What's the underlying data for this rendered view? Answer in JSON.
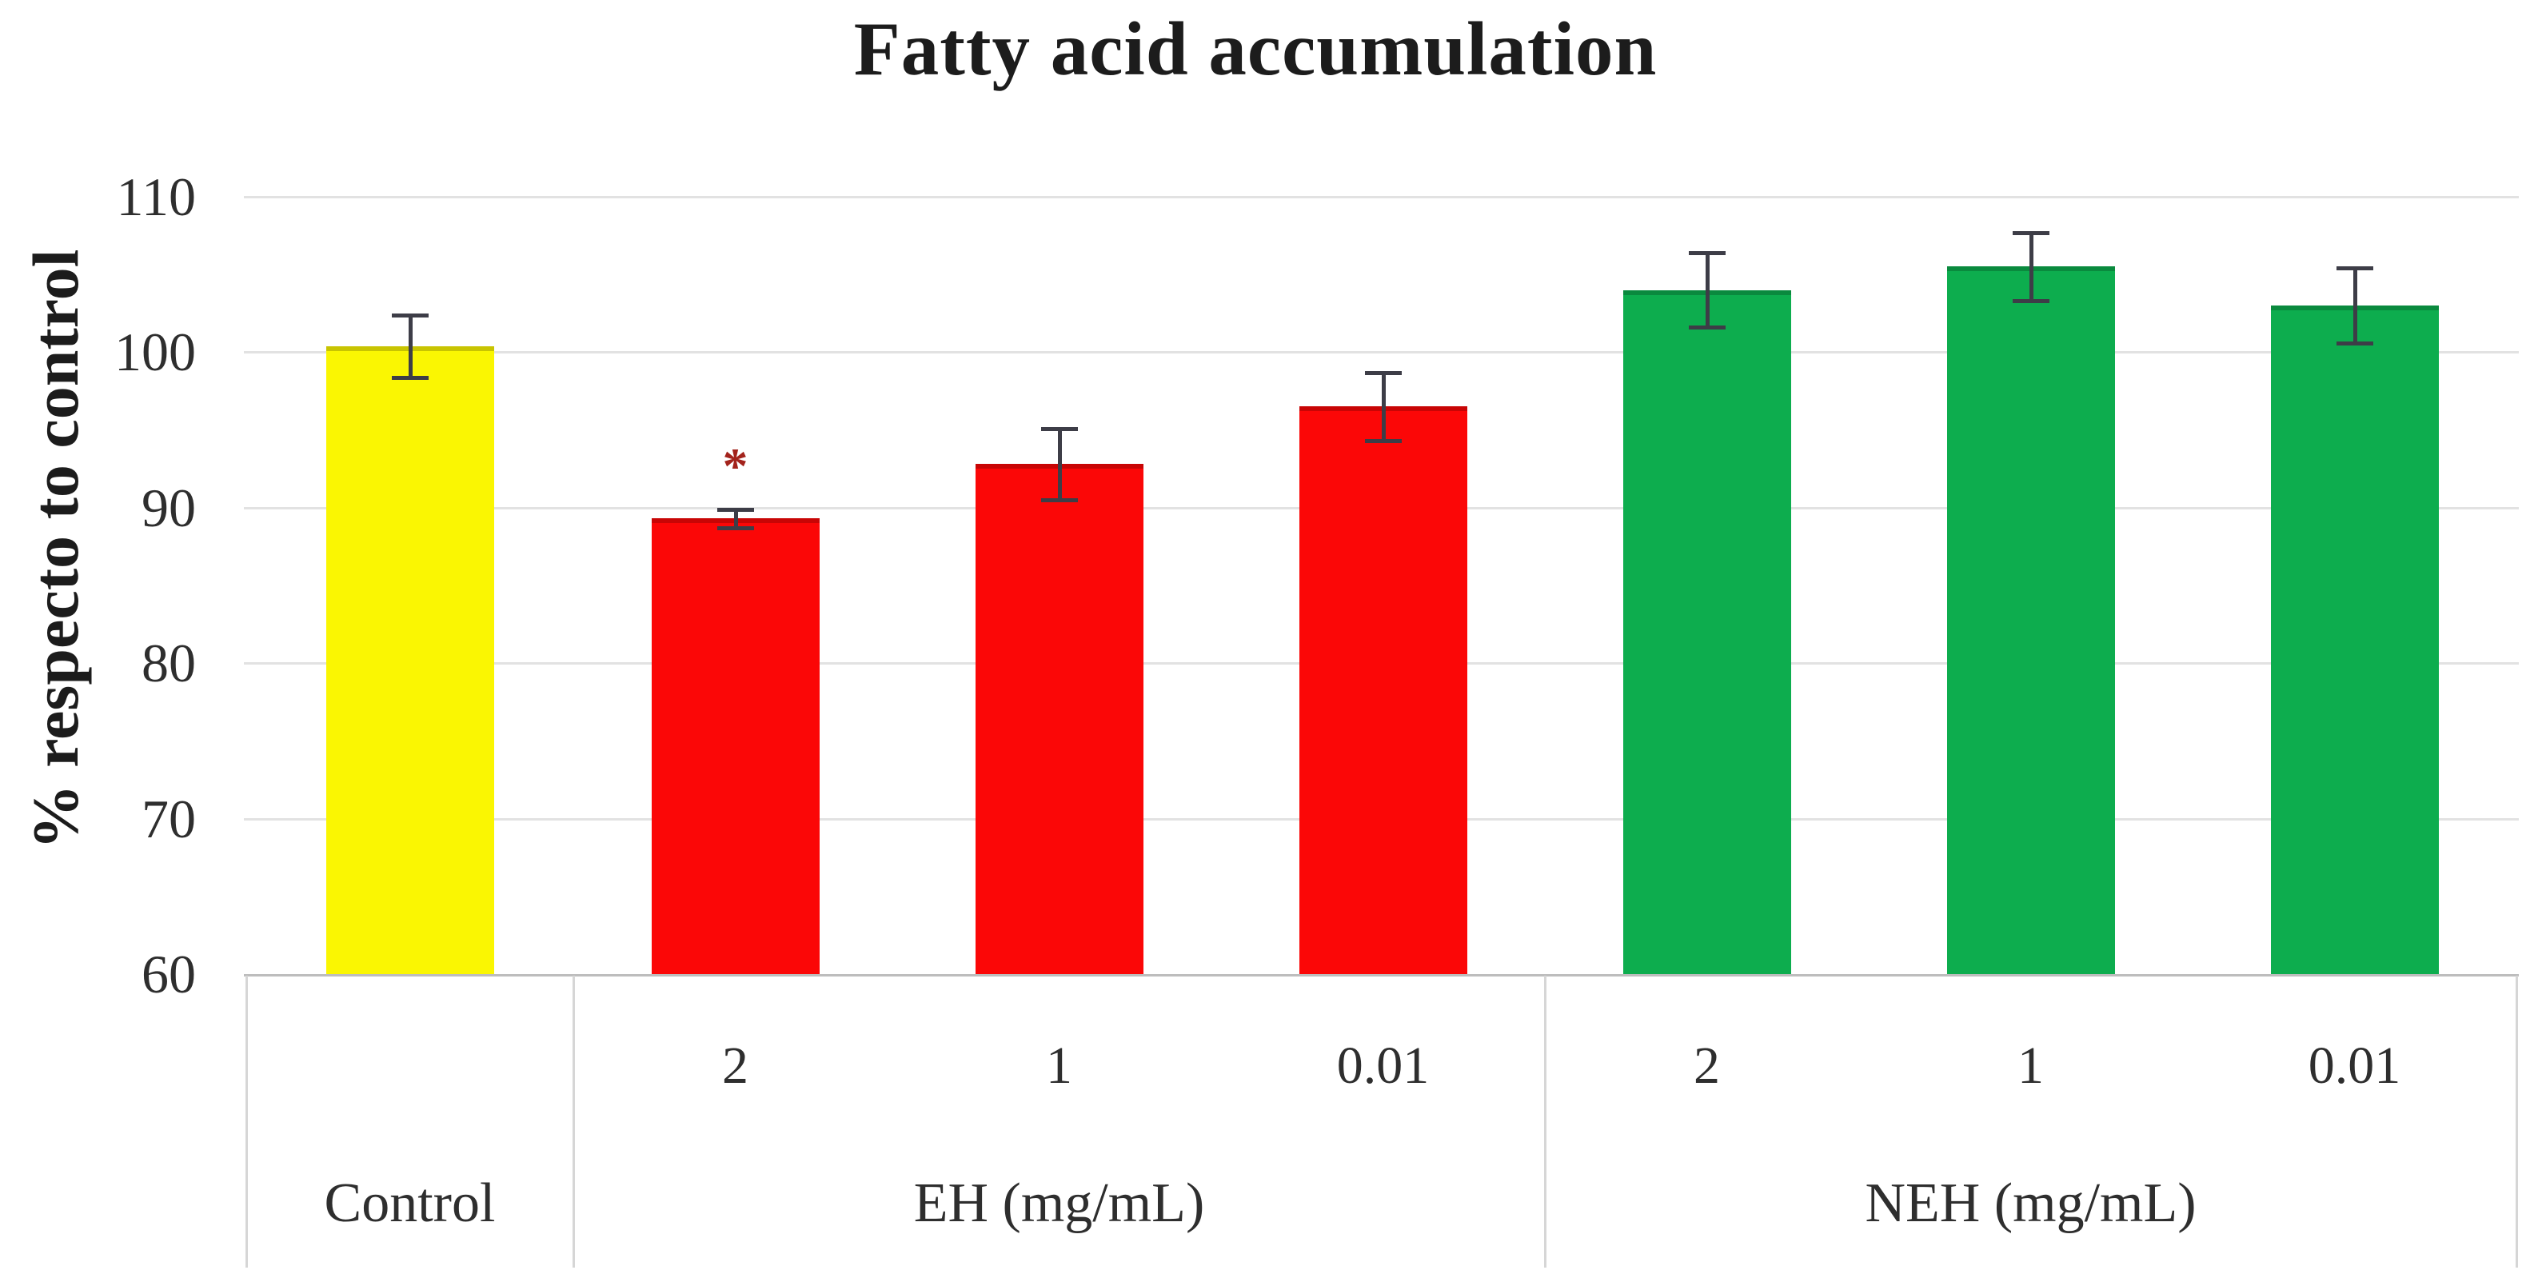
{
  "chart_data": {
    "type": "bar",
    "title": "Fatty acid accumulation",
    "ylabel": "% respecto to control",
    "xlabel": "",
    "ylim": [
      60,
      110
    ],
    "yticks": [
      110,
      100,
      90,
      80,
      70,
      60
    ],
    "grid": true,
    "legend": false,
    "error_bar_color": "#3D3D47",
    "annotation_color": "#A3231C",
    "groups": [
      {
        "id": "control",
        "label": "Control",
        "color": "#FAF602",
        "bars": [
          {
            "tick": "",
            "value": 100.4,
            "error": 2.0
          }
        ]
      },
      {
        "id": "eh",
        "label": "EH (mg/mL)",
        "color": "#FB0707",
        "bars": [
          {
            "tick": "2",
            "value": 89.3,
            "error": 0.6,
            "annotation": "*"
          },
          {
            "tick": "1",
            "value": 92.8,
            "error": 2.3
          },
          {
            "tick": "0.01",
            "value": 96.5,
            "error": 2.2
          }
        ]
      },
      {
        "id": "neh",
        "label": "NEH (mg/mL)",
        "color": "#0DAD4E",
        "bars": [
          {
            "tick": "2",
            "value": 104.0,
            "error": 2.4
          },
          {
            "tick": "1",
            "value": 105.5,
            "error": 2.2
          },
          {
            "tick": "0.01",
            "value": 103.0,
            "error": 2.4
          }
        ]
      }
    ]
  }
}
